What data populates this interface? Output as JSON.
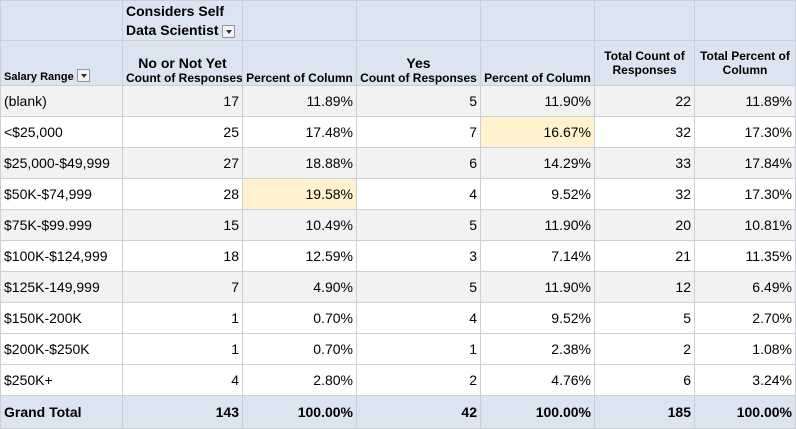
{
  "pivot": {
    "column_field": {
      "label": "Considers Self Data Scientist",
      "line1": "Considers Self",
      "line2": "Data Scientist",
      "filter_icon": "dropdown-arrow-icon"
    },
    "row_field": {
      "label": "Salary Range",
      "filter_icon": "dropdown-arrow-icon"
    },
    "groups": [
      {
        "label": "No or Not Yet"
      },
      {
        "label": "Yes"
      }
    ],
    "subheaders": {
      "count": "Count of Responses",
      "percent": "Percent of Column",
      "total_count_line1": "Total Count of",
      "total_count_line2": "Responses",
      "total_percent_line1": "Total Percent of",
      "total_percent_line2": "Column"
    },
    "rows": [
      {
        "label": "(blank)",
        "no_count": "17",
        "no_pct": "11.89%",
        "yes_count": "5",
        "yes_pct": "11.90%",
        "total_count": "22",
        "total_pct": "11.89%"
      },
      {
        "label": "<$25,000",
        "no_count": "25",
        "no_pct": "17.48%",
        "yes_count": "7",
        "yes_pct": "16.67%",
        "total_count": "32",
        "total_pct": "17.30%"
      },
      {
        "label": "$25,000-$49,999",
        "no_count": "27",
        "no_pct": "18.88%",
        "yes_count": "6",
        "yes_pct": "14.29%",
        "total_count": "33",
        "total_pct": "17.84%"
      },
      {
        "label": "$50K-$74,999",
        "no_count": "28",
        "no_pct": "19.58%",
        "yes_count": "4",
        "yes_pct": "9.52%",
        "total_count": "32",
        "total_pct": "17.30%"
      },
      {
        "label": "$75K-$99.999",
        "no_count": "15",
        "no_pct": "10.49%",
        "yes_count": "5",
        "yes_pct": "11.90%",
        "total_count": "20",
        "total_pct": "10.81%"
      },
      {
        "label": "$100K-$124,999",
        "no_count": "18",
        "no_pct": "12.59%",
        "yes_count": "3",
        "yes_pct": "7.14%",
        "total_count": "21",
        "total_pct": "11.35%"
      },
      {
        "label": "$125K-149,999",
        "no_count": "7",
        "no_pct": "4.90%",
        "yes_count": "5",
        "yes_pct": "11.90%",
        "total_count": "12",
        "total_pct": "6.49%"
      },
      {
        "label": "$150K-200K",
        "no_count": "1",
        "no_pct": "0.70%",
        "yes_count": "4",
        "yes_pct": "9.52%",
        "total_count": "5",
        "total_pct": "2.70%"
      },
      {
        "label": "$200K-$250K",
        "no_count": "1",
        "no_pct": "0.70%",
        "yes_count": "1",
        "yes_pct": "2.38%",
        "total_count": "2",
        "total_pct": "1.08%"
      },
      {
        "label": "$250K+",
        "no_count": "4",
        "no_pct": "2.80%",
        "yes_count": "2",
        "yes_pct": "4.76%",
        "total_count": "6",
        "total_pct": "3.24%"
      }
    ],
    "grand_total": {
      "label": "Grand Total",
      "no_count": "143",
      "no_pct": "100.00%",
      "yes_count": "42",
      "yes_pct": "100.00%",
      "total_count": "185",
      "total_pct": "100.00%"
    },
    "highlights": {
      "color": "#fff2cc",
      "cells": [
        "rows.1.yes_pct",
        "rows.3.no_pct"
      ]
    },
    "colors": {
      "header_bg": "#dbe5f1",
      "band_bg": "#f2f2f2",
      "grid": "#c9d0d8"
    }
  }
}
